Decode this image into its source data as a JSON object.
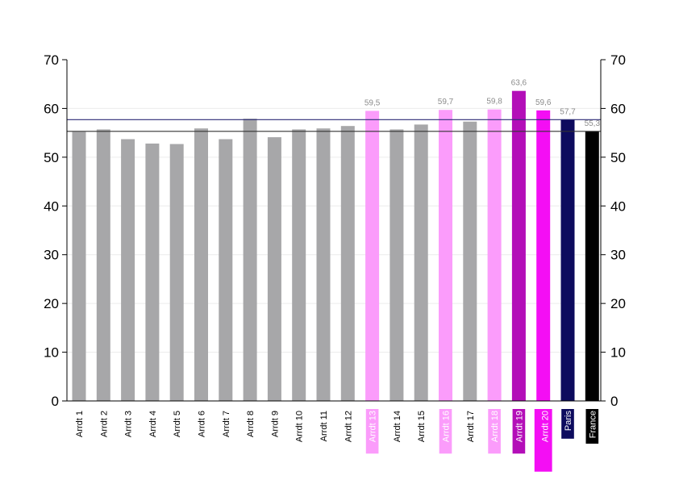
{
  "chart_data": {
    "type": "bar",
    "title": "",
    "xlabel": "",
    "ylabel": "",
    "ylim": [
      0,
      70
    ],
    "yticks": [
      0,
      10,
      20,
      30,
      40,
      50,
      60,
      70
    ],
    "grid": true,
    "categories": [
      "Arrdt 1",
      "Arrdt 2",
      "Arrdt 3",
      "Arrdt 4",
      "Arrdt 5",
      "Arrdt 6",
      "Arrdt 7",
      "Arrdt 8",
      "Arrdt 9",
      "Arrdt 10",
      "Arrdt 11",
      "Arrdt 12",
      "Arrdt 13",
      "Arrdt 14",
      "Arrdt 15",
      "Arrdt 16",
      "Arrdt 17",
      "Arrdt 18",
      "Arrdt 19",
      "Arrdt 20",
      "Paris",
      "France"
    ],
    "values": [
      55.2,
      55.7,
      53.7,
      52.8,
      52.7,
      55.9,
      53.7,
      57.9,
      54.1,
      55.7,
      55.9,
      56.4,
      59.5,
      55.7,
      56.7,
      59.7,
      57.3,
      59.8,
      63.6,
      59.6,
      57.7,
      55.3
    ],
    "value_labels": [
      "",
      "",
      "",
      "",
      "",
      "",
      "",
      "",
      "",
      "",
      "",
      "",
      "59,5",
      "",
      "",
      "59,7",
      "",
      "59,8",
      "63,6",
      "59,6",
      "57,7",
      "55,3"
    ],
    "colors": {
      "default": "#a7a7a9",
      "light_pink": "#fb9cfb",
      "purple": "#b30eb8",
      "magenta": "#f40ef4",
      "navy": "#0d0b5e",
      "black": "#000000",
      "paris_line": "#2b2a76",
      "france_line": "#333333",
      "grid": "#ececec"
    },
    "bar_color_keys": [
      "default",
      "default",
      "default",
      "default",
      "default",
      "default",
      "default",
      "default",
      "default",
      "default",
      "default",
      "default",
      "light_pink",
      "default",
      "default",
      "light_pink",
      "default",
      "light_pink",
      "purple",
      "magenta",
      "navy",
      "black"
    ],
    "reference_lines": [
      {
        "value": 57.7,
        "color_key": "paris_line"
      },
      {
        "value": 55.3,
        "color_key": "france_line"
      }
    ]
  }
}
